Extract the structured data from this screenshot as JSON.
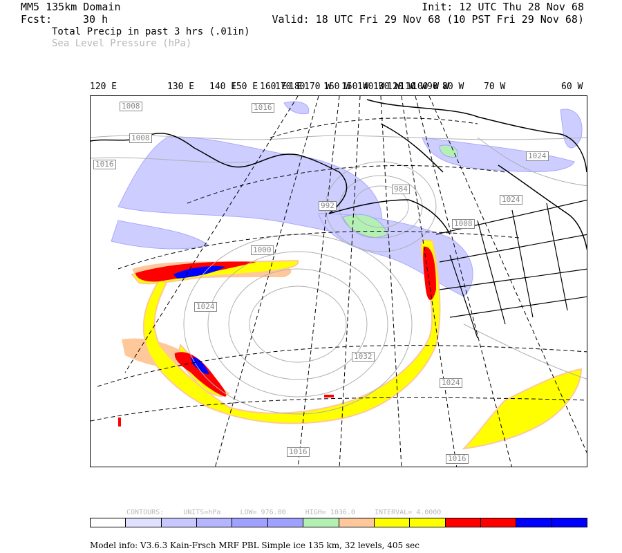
{
  "header": {
    "domain_title": "MM5 135km Domain",
    "forecast_label": "Fcst:",
    "forecast_hours": "30 h",
    "init_text": "Init: 12 UTC Thu 28 Nov 68",
    "valid_text": "Valid: 18 UTC Fri 29 Nov 68 (10 PST Fri 29 Nov 68)",
    "field_primary": "Total Precip in past 3 hrs (.01in)",
    "field_secondary": "Sea Level Pressure (hPa)"
  },
  "map": {
    "longitude_labels": [
      "120 E",
      "130 E",
      "140 E",
      "150 E",
      "160 E",
      "170 E",
      "180",
      "170 W",
      "160 W",
      "150 W",
      "140 W",
      "130 W",
      "120 W",
      "110 W",
      "100 W",
      "90 W",
      "80 W",
      "70 W",
      "60 W"
    ],
    "pressure_labels": [
      "1008",
      "1016",
      "1016",
      "1008",
      "984",
      "1024",
      "1024",
      "1008",
      "1000",
      "1024",
      "1032",
      "1024",
      "1016",
      "1016",
      "992"
    ]
  },
  "contour_info": {
    "contours": "CONTOURS:",
    "units": "UNITS=hPa",
    "low": "LOW=   976.00",
    "high": "HIGH=  1036.0",
    "interval": "INTERVAL=    4.0000"
  },
  "colorbar": {
    "colors": [
      "#ffffff",
      "#e0e0ff",
      "#c8c8ff",
      "#b4b4ff",
      "#a0a0ff",
      "#a0a0ff",
      "#b4f0b4",
      "#ffc89b",
      "#ffff00",
      "#ffff00",
      "#ff0000",
      "#ff0000",
      "#0000ff",
      "#0000ff"
    ]
  },
  "footer": {
    "model_info": "Model info: V3.6.3 Kain-Frsch MRF PBL    Simple ice  135 km,  32 levels,  405 sec"
  }
}
